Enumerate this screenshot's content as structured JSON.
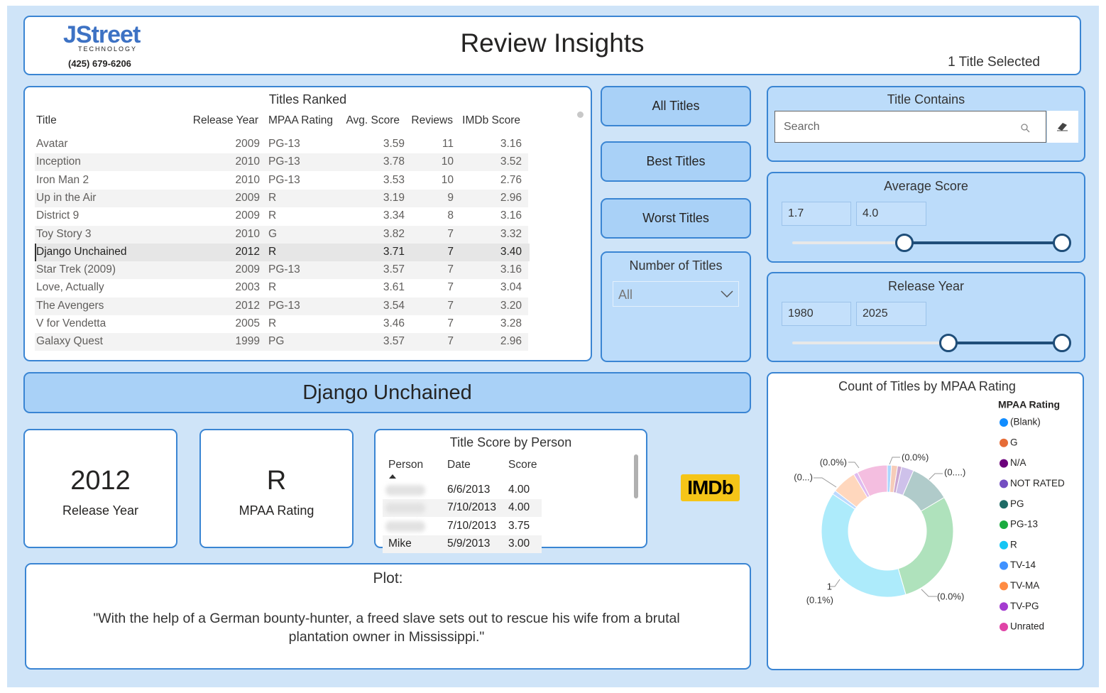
{
  "header": {
    "logo": "JStreet",
    "logo_sub": "TECHNOLOGY",
    "phone": "(425) 679-6206",
    "title": "Review Insights",
    "selection": "1 Title Selected"
  },
  "table": {
    "title": "Titles Ranked",
    "columns": [
      "Title",
      "Release Year",
      "MPAA Rating",
      "Avg. Score",
      "Reviews",
      "IMDb Score"
    ],
    "rows": [
      [
        "Avatar",
        "2009",
        "PG-13",
        "3.59",
        "11",
        "3.16"
      ],
      [
        "Inception",
        "2010",
        "PG-13",
        "3.78",
        "10",
        "3.52"
      ],
      [
        "Iron Man 2",
        "2010",
        "PG-13",
        "3.53",
        "10",
        "2.76"
      ],
      [
        "Up in the Air",
        "2009",
        "R",
        "3.19",
        "9",
        "2.96"
      ],
      [
        "District 9",
        "2009",
        "R",
        "3.34",
        "8",
        "3.16"
      ],
      [
        "Toy Story 3",
        "2010",
        "G",
        "3.82",
        "7",
        "3.32"
      ],
      [
        "Django Unchained",
        "2012",
        "R",
        "3.71",
        "7",
        "3.40"
      ],
      [
        "Star Trek (2009)",
        "2009",
        "PG-13",
        "3.57",
        "7",
        "3.16"
      ],
      [
        "Love, Actually",
        "2003",
        "R",
        "3.61",
        "7",
        "3.04"
      ],
      [
        "The Avengers",
        "2012",
        "PG-13",
        "3.54",
        "7",
        "3.20"
      ],
      [
        "V for Vendetta",
        "2005",
        "R",
        "3.46",
        "7",
        "3.28"
      ],
      [
        "Galaxy Quest",
        "1999",
        "PG",
        "3.57",
        "7",
        "2.96"
      ]
    ],
    "selected_row": 6
  },
  "buttons": [
    "All Titles",
    "Best Titles",
    "Worst Titles"
  ],
  "number_of_titles": {
    "title": "Number of Titles",
    "value": "All"
  },
  "title_contains": {
    "title": "Title Contains",
    "placeholder": "Search"
  },
  "average_score": {
    "title": "Average Score",
    "min": "1.7",
    "max": "4.0"
  },
  "release_year": {
    "title": "Release Year",
    "min": "1980",
    "max": "2025"
  },
  "selected_title": "Django Unchained",
  "cards": [
    {
      "value": "2012",
      "label": "Release Year"
    },
    {
      "value": "R",
      "label": "MPAA Rating"
    }
  ],
  "person_scores": {
    "title": "Title Score by Person",
    "columns": [
      "Person",
      "Date",
      "Score"
    ],
    "rows": [
      {
        "date": "6/6/2013",
        "score": "4.00"
      },
      {
        "date": "7/10/2013",
        "score": "4.00"
      },
      {
        "date": "7/10/2013",
        "score": "3.75"
      },
      {
        "person": "Mike",
        "date": "5/9/2013",
        "score": "3.00"
      }
    ]
  },
  "imdb_logo": "IMDb",
  "plot": {
    "label": "Plot:",
    "text": "\"With the help of a German bounty-hunter, a freed slave sets out to rescue his wife from a brutal plantation owner in Mississippi.\""
  },
  "chart_data": {
    "type": "donut",
    "title": "Count of Titles by MPAA Rating",
    "legend_title": "MPAA Rating",
    "legend": "right",
    "categories": [
      "(Blank)",
      "G",
      "N/A",
      "NOT RATED",
      "PG",
      "PG-13",
      "R",
      "TV-14",
      "TV-MA",
      "TV-PG",
      "Unrated"
    ],
    "values": [
      1,
      1.5,
      1,
      3,
      10,
      29,
      39,
      1,
      6,
      1,
      7.5
    ],
    "colors": [
      "#118dff",
      "#e66c37",
      "#6b007b",
      "#744ec2",
      "#1e6b66",
      "#1aab40",
      "#15c6f4",
      "#4092ff",
      "#ff8c43",
      "#a43cd0",
      "#e044a7"
    ],
    "annotations": [
      "(0.0%)",
      "(0...)",
      "(0.0%)",
      "(0....)",
      "1",
      "(0.1%)",
      "(0.0%)"
    ]
  }
}
